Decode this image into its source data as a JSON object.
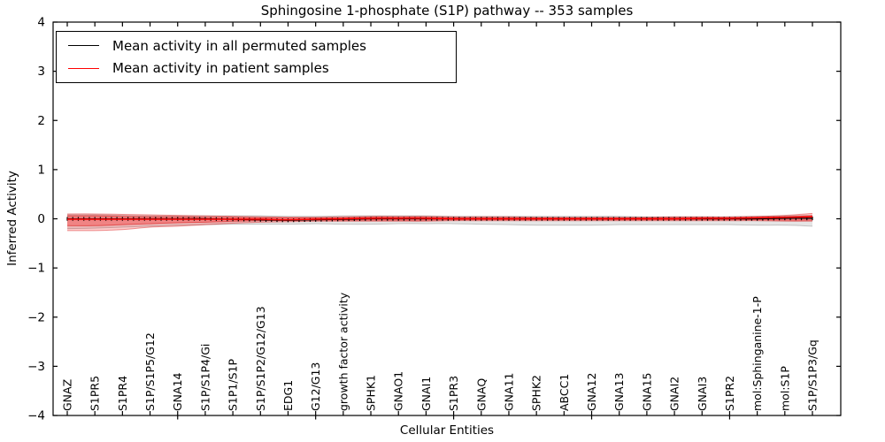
{
  "chart_data": {
    "type": "line",
    "title": "Sphingosine 1-phosphate (S1P) pathway -- 353 samples",
    "xlabel": "Cellular Entities",
    "ylabel": "Inferred Activity",
    "ylim": [
      -4,
      4
    ],
    "ytick_values": [
      4,
      3,
      2,
      1,
      0,
      -1,
      -2,
      -3,
      -4
    ],
    "ytick_labels": [
      "4",
      "3",
      "2",
      "1",
      "0",
      "−1",
      "−2",
      "−3",
      "−4"
    ],
    "grid": false,
    "legend_position": "upper left",
    "categories": [
      "GNAZ",
      "S1PR5",
      "S1PR4",
      "S1P/S1P5/G12",
      "GNA14",
      "S1P/S1P4/Gi",
      "S1P1/S1P",
      "S1P/S1P2/G12/G13",
      "EDG1",
      "G12/G13",
      "growth factor activity",
      "SPHK1",
      "GNAO1",
      "GNAI1",
      "S1PR3",
      "GNAQ",
      "GNA11",
      "SPHK2",
      "ABCC1",
      "GNA12",
      "GNA13",
      "GNA15",
      "GNAI2",
      "GNAI3",
      "S1PR2",
      "mol:Sphinganine-1-P",
      "mol:S1P",
      "S1P/S1P3/Gq"
    ],
    "outer_tick_indices": [
      4,
      9,
      14,
      19,
      24
    ],
    "series": [
      {
        "name": "Mean activity in all permuted samples",
        "color": "#000000",
        "values": [
          0,
          0,
          0,
          0,
          0,
          0,
          -0.01,
          -0.02,
          -0.03,
          -0.02,
          -0.01,
          0,
          0,
          0,
          0,
          0,
          0,
          0,
          0,
          0,
          0,
          0,
          0,
          0,
          0,
          0,
          0.01,
          0.01
        ]
      },
      {
        "name": "Mean activity in patient samples",
        "color": "#ff0000",
        "values": [
          -0.01,
          -0.01,
          -0.01,
          -0.01,
          -0.01,
          -0.01,
          -0.01,
          -0.01,
          -0.02,
          -0.01,
          0,
          0.01,
          0.01,
          0.01,
          0,
          0,
          0,
          0,
          0,
          0,
          0,
          0,
          0,
          0.01,
          0.01,
          0.02,
          0.03,
          0.04
        ]
      }
    ],
    "bands": [
      {
        "name": "permuted-samples-range",
        "fill": "rgba(0,0,0,0.10)",
        "edge": "rgba(0,0,0,0.20)",
        "upper": [
          0.08,
          0.08,
          0.07,
          0.06,
          0.06,
          0.06,
          0.06,
          0.06,
          0.05,
          0.05,
          0.06,
          0.06,
          0.06,
          0.06,
          0.05,
          0.05,
          0.05,
          0.05,
          0.05,
          0.05,
          0.05,
          0.04,
          0.04,
          0.04,
          0.04,
          0.05,
          0.06,
          0.07
        ],
        "lower": [
          -0.2,
          -0.19,
          -0.17,
          -0.15,
          -0.13,
          -0.12,
          -0.11,
          -0.11,
          -0.11,
          -0.1,
          -0.11,
          -0.11,
          -0.1,
          -0.1,
          -0.1,
          -0.11,
          -0.12,
          -0.13,
          -0.13,
          -0.13,
          -0.12,
          -0.12,
          -0.12,
          -0.12,
          -0.12,
          -0.13,
          -0.13,
          -0.15
        ]
      },
      {
        "name": "patient-samples-range",
        "fill": "rgba(255,0,0,0.20)",
        "edge": "rgba(210,0,0,0.38)",
        "upper": [
          0.1,
          0.1,
          0.09,
          0.08,
          0.07,
          0.06,
          0.05,
          0.04,
          0.03,
          0.03,
          0.04,
          0.05,
          0.05,
          0.05,
          0.04,
          0.04,
          0.04,
          0.03,
          0.03,
          0.03,
          0.03,
          0.03,
          0.04,
          0.04,
          0.04,
          0.05,
          0.07,
          0.11
        ],
        "lower": [
          -0.24,
          -0.24,
          -0.22,
          -0.17,
          -0.15,
          -0.12,
          -0.09,
          -0.07,
          -0.06,
          -0.05,
          -0.05,
          -0.05,
          -0.05,
          -0.05,
          -0.04,
          -0.04,
          -0.04,
          -0.04,
          -0.04,
          -0.04,
          -0.04,
          -0.04,
          -0.04,
          -0.04,
          -0.04,
          -0.04,
          -0.05,
          -0.05
        ]
      },
      {
        "name": "patient-samples-inner-range",
        "fill": "rgba(255,0,0,0.28)",
        "edge": "rgba(220,0,0,0.50)",
        "upper": [
          0.06,
          0.06,
          0.05,
          0.04,
          0.04,
          0.03,
          0.03,
          0.02,
          0.02,
          0.02,
          0.02,
          0.03,
          0.03,
          0.03,
          0.02,
          0.02,
          0.02,
          0.02,
          0.02,
          0.02,
          0.02,
          0.02,
          0.02,
          0.02,
          0.02,
          0.03,
          0.04,
          0.06
        ],
        "lower": [
          -0.14,
          -0.14,
          -0.12,
          -0.1,
          -0.08,
          -0.07,
          -0.05,
          -0.04,
          -0.03,
          -0.03,
          -0.03,
          -0.03,
          -0.03,
          -0.03,
          -0.02,
          -0.02,
          -0.02,
          -0.02,
          -0.02,
          -0.02,
          -0.02,
          -0.02,
          -0.02,
          -0.02,
          -0.02,
          -0.02,
          -0.03,
          -0.03
        ]
      }
    ]
  }
}
